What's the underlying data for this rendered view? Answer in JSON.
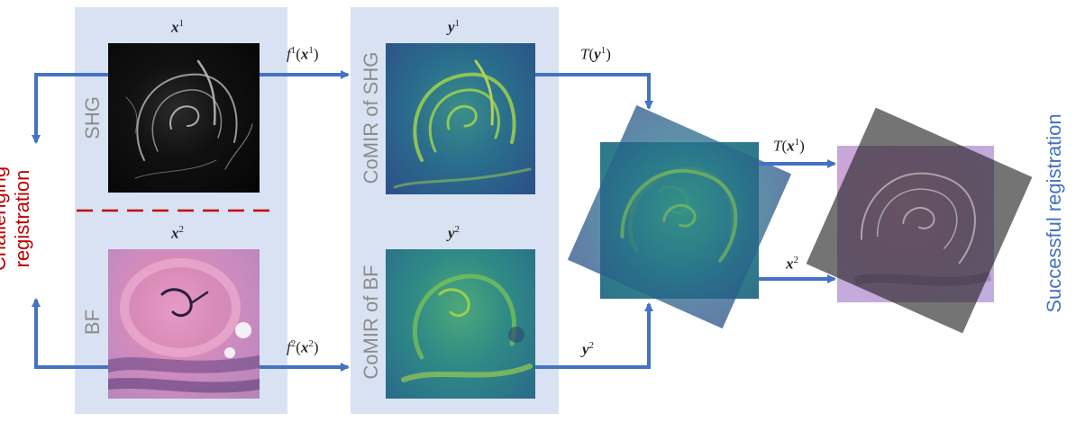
{
  "inputs": {
    "x1": {
      "base": "x",
      "sup": "1"
    },
    "x2": {
      "base": "x",
      "sup": "2"
    },
    "mod1": "SHG",
    "mod2": "BF"
  },
  "comir": {
    "y1": {
      "base": "y",
      "sup": "1"
    },
    "y2": {
      "base": "y",
      "sup": "2"
    },
    "label1": "CoMIR of SHG",
    "label2": "CoMIR of BF"
  },
  "arrows": {
    "f1": {
      "fn": "f",
      "sup": "1",
      "arg": "x",
      "argsup": "1"
    },
    "f2": {
      "fn": "f",
      "sup": "2",
      "arg": "x",
      "argsup": "2"
    },
    "Ty1": {
      "fn": "T",
      "arg": "y",
      "argsup": "1"
    },
    "y2": {
      "base": "y",
      "sup": "2"
    },
    "Tx1": {
      "fn": "T",
      "arg": "x",
      "argsup": "1"
    },
    "x2": {
      "base": "x",
      "sup": "2"
    }
  },
  "left_label": {
    "line1": "Challenging",
    "line2": "registration"
  },
  "right_label": "Successful registration",
  "colors": {
    "panel": "#d9e2f3",
    "arrow": "#4472c4",
    "dashed": "#c00000",
    "left_text": "#c00000",
    "right_text": "#4472c4",
    "modality_text": "#8c8c8c"
  }
}
